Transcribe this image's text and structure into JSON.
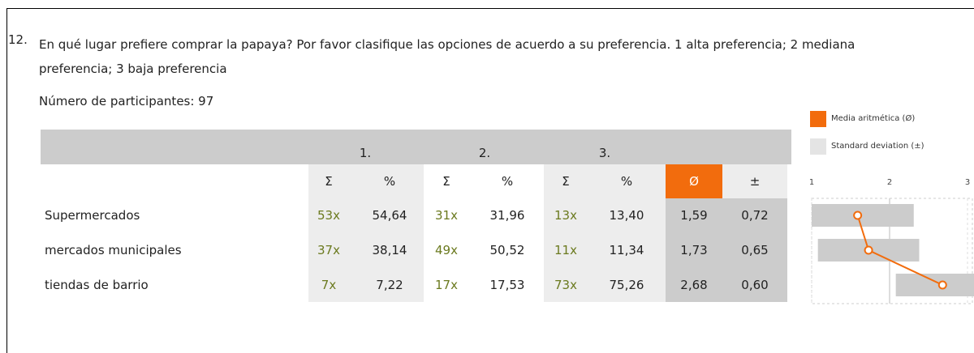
{
  "question": {
    "number": "12.",
    "text": "En qué lugar prefiere comprar la papaya? Por favor clasifique las opciones de acuerdo a su preferencia. 1 alta preferencia; 2 mediana preferencia; 3 baja preferencia"
  },
  "participants": "Número de participantes: 97",
  "legend": {
    "mean": "Media aritmética (Ø)",
    "sd": "Standard deviation (±)"
  },
  "table": {
    "groups": [
      "1.",
      "2.",
      "3."
    ],
    "columns": [
      "Σ",
      "%",
      "Σ",
      "%",
      "Σ",
      "%",
      "Ø",
      "±"
    ],
    "rows": [
      {
        "label": "Supermercados",
        "cells": [
          "53x",
          "54,64",
          "31x",
          "31,96",
          "13x",
          "13,40"
        ],
        "mean": {
          "value": 1.59,
          "label": "1,59"
        },
        "sd": {
          "value": 0.72,
          "label": "0,72"
        }
      },
      {
        "label": "mercados municipales",
        "cells": [
          "37x",
          "38,14",
          "49x",
          "50,52",
          "11x",
          "11,34"
        ],
        "mean": {
          "value": 1.73,
          "label": "1,73"
        },
        "sd": {
          "value": 0.65,
          "label": "0,65"
        }
      },
      {
        "label": "tiendas de barrio",
        "cells": [
          "7x",
          "7,22",
          "17x",
          "17,53",
          "73x",
          "75,26"
        ],
        "mean": {
          "value": 2.68,
          "label": "2,68"
        },
        "sd": {
          "value": 0.6,
          "label": "0,60"
        }
      }
    ]
  },
  "scale": {
    "lim": [
      1,
      3
    ],
    "ticks": [
      1,
      2,
      3
    ]
  }
}
